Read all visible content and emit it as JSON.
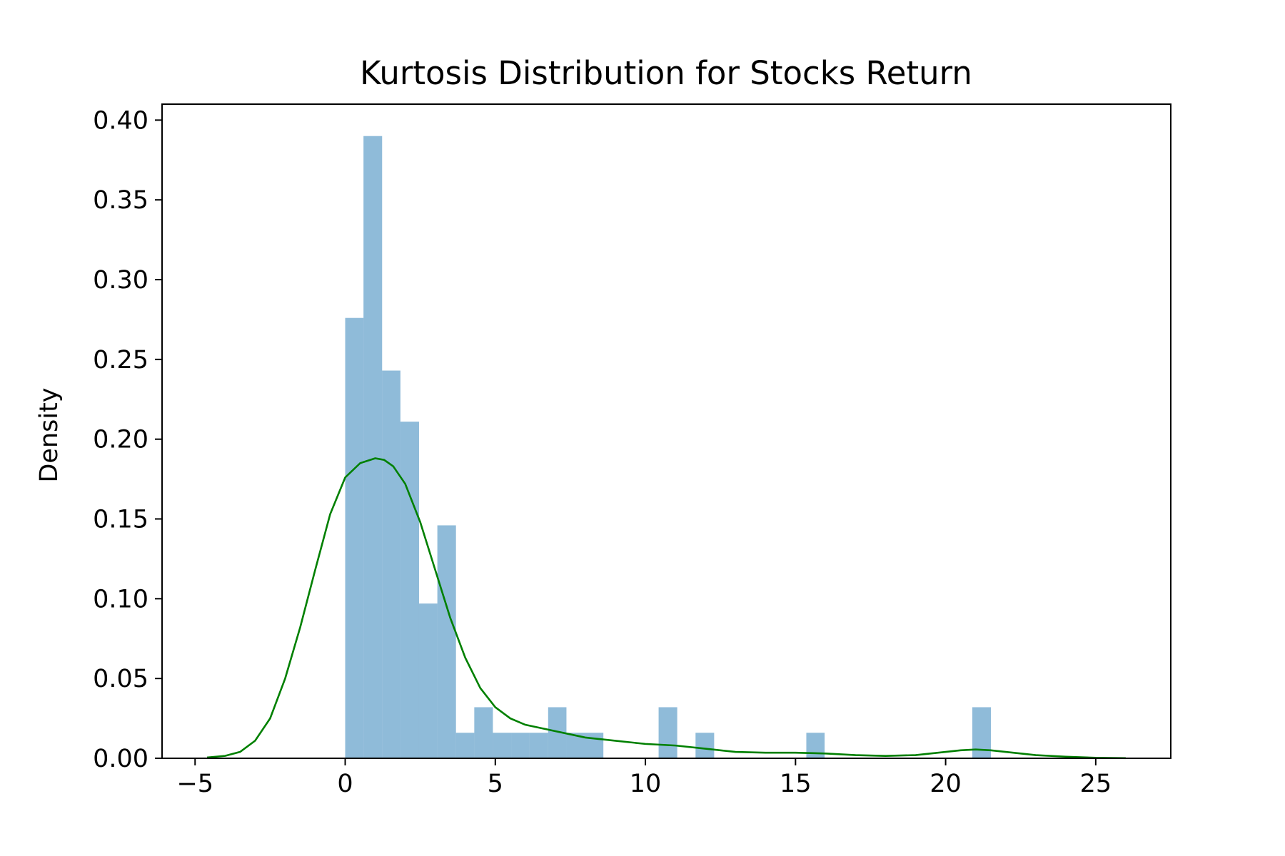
{
  "chart_data": {
    "type": "bar",
    "title": "Kurtosis Distribution for Stocks Return",
    "xlabel": "",
    "ylabel": "Density",
    "xlim": [
      -6.1,
      27.5
    ],
    "ylim": [
      0,
      0.41
    ],
    "x_ticks": [
      -5,
      0,
      5,
      10,
      15,
      20,
      25
    ],
    "x_tick_labels": [
      "−5",
      "0",
      "5",
      "10",
      "15",
      "20",
      "25"
    ],
    "y_ticks": [
      0.0,
      0.05,
      0.1,
      0.15,
      0.2,
      0.25,
      0.3,
      0.35,
      0.4
    ],
    "y_tick_labels": [
      "0.00",
      "0.05",
      "0.10",
      "0.15",
      "0.20",
      "0.25",
      "0.30",
      "0.35",
      "0.40"
    ],
    "grid": false,
    "histogram": {
      "color": "#1f77b4",
      "opacity": 0.5,
      "bins": [
        {
          "x0": 0.0,
          "x1": 0.61,
          "density": 0.276
        },
        {
          "x0": 0.61,
          "x1": 1.23,
          "density": 0.39
        },
        {
          "x0": 1.23,
          "x1": 1.84,
          "density": 0.243
        },
        {
          "x0": 1.84,
          "x1": 2.46,
          "density": 0.211
        },
        {
          "x0": 2.46,
          "x1": 3.07,
          "density": 0.097
        },
        {
          "x0": 3.07,
          "x1": 3.69,
          "density": 0.146
        },
        {
          "x0": 3.69,
          "x1": 4.3,
          "density": 0.016
        },
        {
          "x0": 4.3,
          "x1": 4.92,
          "density": 0.032
        },
        {
          "x0": 4.92,
          "x1": 5.53,
          "density": 0.016
        },
        {
          "x0": 5.53,
          "x1": 6.14,
          "density": 0.016
        },
        {
          "x0": 6.14,
          "x1": 6.76,
          "density": 0.016
        },
        {
          "x0": 6.76,
          "x1": 7.37,
          "density": 0.032
        },
        {
          "x0": 7.37,
          "x1": 7.99,
          "density": 0.016
        },
        {
          "x0": 7.99,
          "x1": 8.6,
          "density": 0.016
        },
        {
          "x0": 10.44,
          "x1": 11.06,
          "density": 0.032
        },
        {
          "x0": 11.67,
          "x1": 12.29,
          "density": 0.016
        },
        {
          "x0": 15.36,
          "x1": 15.97,
          "density": 0.016
        },
        {
          "x0": 20.89,
          "x1": 21.51,
          "density": 0.032
        }
      ]
    },
    "kde": {
      "color": "#008000",
      "x": [
        -4.6,
        -4.0,
        -3.5,
        -3.0,
        -2.5,
        -2.0,
        -1.5,
        -1.0,
        -0.5,
        0.0,
        0.5,
        1.0,
        1.3,
        1.6,
        2.0,
        2.5,
        3.0,
        3.5,
        4.0,
        4.5,
        5.0,
        5.5,
        6.0,
        6.5,
        7.0,
        7.5,
        8.0,
        8.5,
        9.0,
        10.0,
        11.0,
        12.0,
        13.0,
        14.0,
        15.0,
        16.0,
        17.0,
        18.0,
        19.0,
        20.0,
        20.5,
        21.0,
        21.5,
        22.0,
        23.0,
        24.0,
        25.0,
        26.0
      ],
      "y": [
        0.0005,
        0.0015,
        0.004,
        0.011,
        0.025,
        0.05,
        0.082,
        0.118,
        0.153,
        0.176,
        0.185,
        0.188,
        0.187,
        0.183,
        0.172,
        0.148,
        0.118,
        0.088,
        0.063,
        0.044,
        0.032,
        0.025,
        0.021,
        0.019,
        0.017,
        0.015,
        0.013,
        0.012,
        0.011,
        0.009,
        0.008,
        0.006,
        0.004,
        0.0035,
        0.0035,
        0.003,
        0.002,
        0.0015,
        0.002,
        0.004,
        0.005,
        0.0055,
        0.005,
        0.004,
        0.002,
        0.001,
        0.0003,
        0.0001
      ]
    }
  }
}
